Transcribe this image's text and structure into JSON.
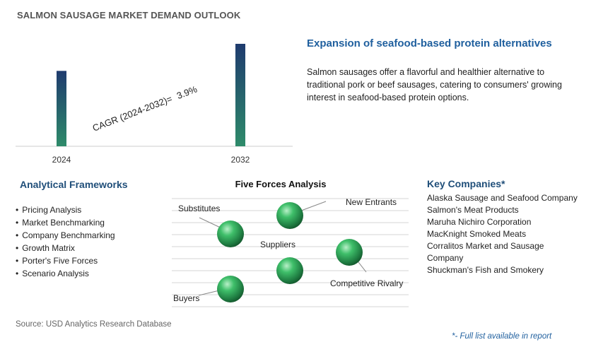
{
  "title": "SALMON SAUSAGE MARKET DEMAND OUTLOOK",
  "chart_data": {
    "type": "bar",
    "categories": [
      "2024",
      "2032"
    ],
    "values": [
      1.0,
      1.359
    ],
    "cagr_label": "CAGR (2024-2032)=",
    "cagr_value": "3.9%"
  },
  "highlight": {
    "heading": "Expansion of seafood-based protein alternatives",
    "description": "Salmon sausages offer a flavorful and healthier alternative to traditional pork or beef sausages, catering to consumers' growing interest in seafood-based protein options."
  },
  "frameworks": {
    "heading": "Analytical Frameworks",
    "items": [
      "Pricing Analysis",
      "Market Benchmarking",
      "Company Benchmarking",
      "Growth Matrix",
      "Porter's Five Forces",
      "Scenario Analysis"
    ]
  },
  "five_forces": {
    "heading": "Five Forces Analysis",
    "labels": {
      "substitutes": "Substitutes",
      "new_entrants": "New Entrants",
      "suppliers": "Suppliers",
      "competitive_rivalry": "Competitive Rivalry",
      "buyers": "Buyers"
    }
  },
  "key_companies": {
    "heading": "Key Companies*",
    "items": [
      "Alaska Sausage and Seafood Company",
      "Salmon's Meat Products",
      "Maruha Nichiro Corporation",
      "MacKnight Smoked Meats",
      "Corralitos Market and Sausage Company",
      "Shuckman's Fish and Smokery"
    ]
  },
  "source": "Source: USD Analytics Research Database",
  "footnote": "*- Full list available in report",
  "colors": {
    "bar_top": "#1f3b6e",
    "bar_bottom": "#2e8b6a",
    "sphere": "#2fa35a",
    "heading_blue": "#1f5f9e"
  }
}
